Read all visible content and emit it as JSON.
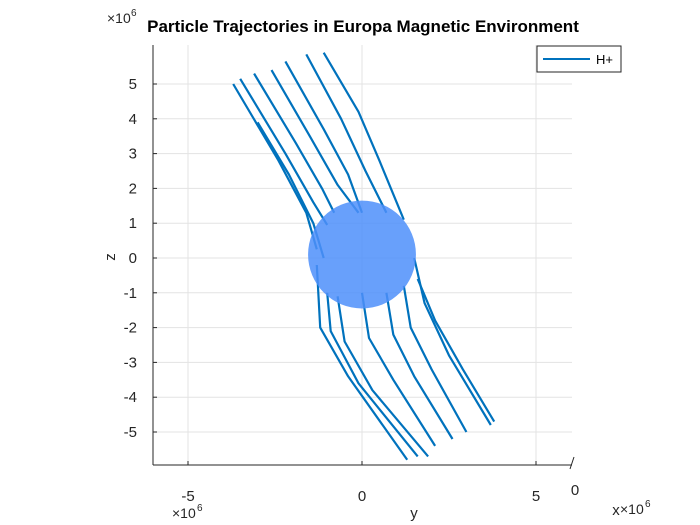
{
  "chart_data": {
    "type": "line",
    "title": "Particle Trajectories in Europa Magnetic Environment",
    "xlabel": "y",
    "ylabel": "z",
    "third_axis_label": "x",
    "xlim": [
      -6000000,
      6000000
    ],
    "ylim": [
      -5900000,
      5900000
    ],
    "x_ticks": [
      -5000000,
      0,
      5000000
    ],
    "x_tick_labels": [
      "-5",
      "0",
      "5"
    ],
    "y_ticks": [
      -5000000,
      -4000000,
      -3000000,
      -2000000,
      -1000000,
      0,
      1000000,
      2000000,
      3000000,
      4000000,
      5000000
    ],
    "y_tick_labels": [
      "-5",
      "-4",
      "-3",
      "-2",
      "-1",
      "0",
      "1",
      "2",
      "3",
      "4",
      "5"
    ],
    "x_tick_labels_secondary": [
      "0"
    ],
    "exponent_label": "×10",
    "exponent_power": "6",
    "grid": true,
    "legend_position": "top-right",
    "series": [
      {
        "name": "H+",
        "color": "#0072bd",
        "trajectories": [
          [
            [
              -3700000,
              5000000
            ],
            [
              -2400000,
              2800000
            ],
            [
              -1600000,
              1300000
            ],
            [
              -1300000,
              250000
            ]
          ],
          [
            [
              -3500000,
              5150000
            ],
            [
              -2200000,
              3000000
            ],
            [
              -1400000,
              1600000
            ],
            [
              -1000000,
              950000
            ]
          ],
          [
            [
              -3100000,
              5300000
            ],
            [
              -1900000,
              3300000
            ],
            [
              -1150000,
              2000000
            ],
            [
              -800000,
              1300000
            ]
          ],
          [
            [
              -2600000,
              5400000
            ],
            [
              -1500000,
              3500000
            ],
            [
              -700000,
              2100000
            ],
            [
              -100000,
              1300000
            ]
          ],
          [
            [
              -2200000,
              5650000
            ],
            [
              -1100000,
              3700000
            ],
            [
              -400000,
              2400000
            ],
            [
              0,
              1300000
            ]
          ],
          [
            [
              -1600000,
              5850000
            ],
            [
              -600000,
              4000000
            ],
            [
              100000,
              2500000
            ],
            [
              700000,
              1300000
            ]
          ],
          [
            [
              -1100000,
              5900000
            ],
            [
              -100000,
              4200000
            ],
            [
              500000,
              2800000
            ],
            [
              1200000,
              1100000
            ]
          ],
          [
            [
              -3000000,
              3900000
            ],
            [
              -2100000,
              2400000
            ],
            [
              -1400000,
              1000000
            ],
            [
              -1100000,
              0
            ]
          ],
          [
            [
              -1300000,
              -200000
            ],
            [
              -1200000,
              -2000000
            ],
            [
              -400000,
              -3400000
            ],
            [
              1300000,
              -5800000
            ]
          ],
          [
            [
              -1000000,
              -1000000
            ],
            [
              -900000,
              -2100000
            ],
            [
              -100000,
              -3600000
            ],
            [
              1600000,
              -5700000
            ]
          ],
          [
            [
              -700000,
              -1100000
            ],
            [
              -500000,
              -2400000
            ],
            [
              300000,
              -3800000
            ],
            [
              1900000,
              -5700000
            ]
          ],
          [
            [
              0,
              -1000000
            ],
            [
              200000,
              -2300000
            ],
            [
              900000,
              -3500000
            ],
            [
              2100000,
              -5400000
            ]
          ],
          [
            [
              700000,
              -1000000
            ],
            [
              900000,
              -2200000
            ],
            [
              1500000,
              -3400000
            ],
            [
              2600000,
              -5200000
            ]
          ],
          [
            [
              1200000,
              -800000
            ],
            [
              1400000,
              -2000000
            ],
            [
              2000000,
              -3200000
            ],
            [
              3000000,
              -5000000
            ]
          ],
          [
            [
              1500000,
              0
            ],
            [
              1800000,
              -1300000
            ],
            [
              2500000,
              -2800000
            ],
            [
              3700000,
              -4800000
            ]
          ],
          [
            [
              1600000,
              -600000
            ],
            [
              2100000,
              -1800000
            ],
            [
              2900000,
              -3200000
            ],
            [
              3800000,
              -4700000
            ]
          ]
        ]
      }
    ],
    "sphere": {
      "center": [
        0,
        100000
      ],
      "radius": 1550000,
      "color": "#4d8ffa"
    }
  }
}
